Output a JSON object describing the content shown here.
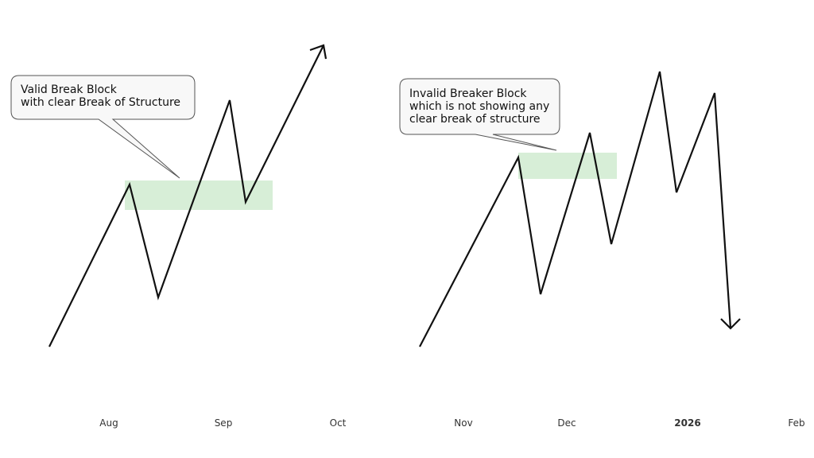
{
  "left_panel": {
    "callout": {
      "lines": [
        "Valid Break Block",
        "with clear Break of Structure"
      ]
    },
    "time_labels": [
      "Aug",
      "Sep",
      "Oct"
    ]
  },
  "right_panel": {
    "callout": {
      "lines": [
        "Invalid Breaker Block",
        "which is not showing any",
        "clear break of structure"
      ]
    },
    "time_labels": [
      "Nov",
      "Dec",
      "2026",
      "Feb"
    ]
  }
}
